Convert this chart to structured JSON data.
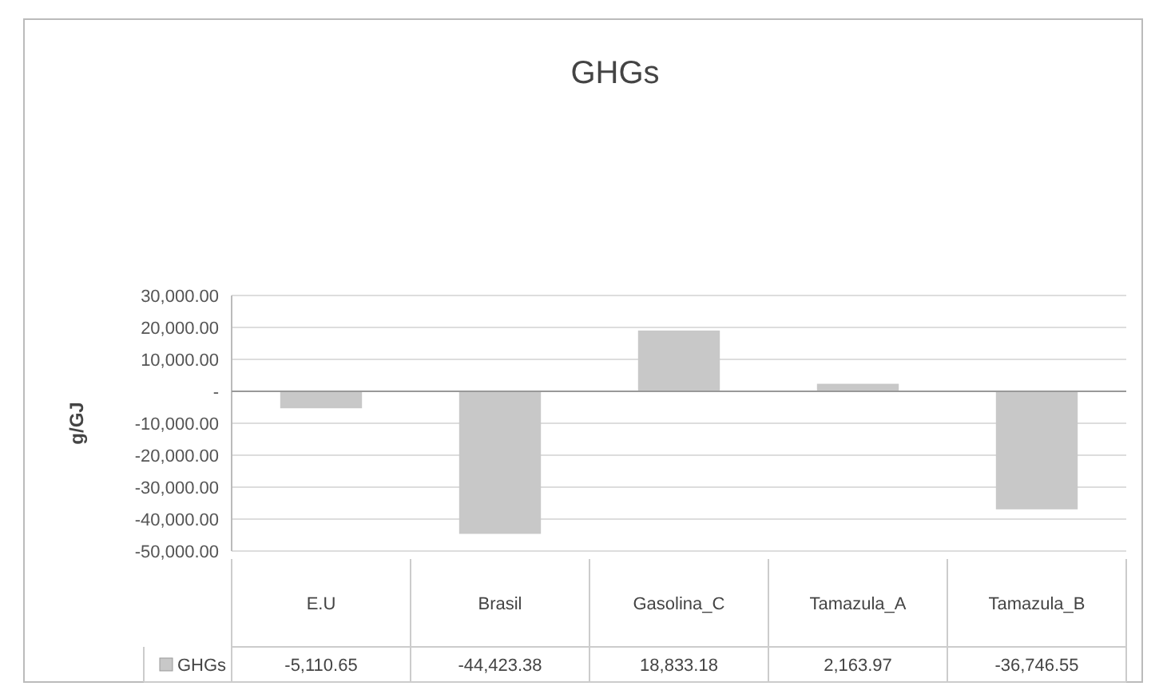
{
  "chart_data": {
    "type": "bar",
    "title": "GHGs",
    "ylabel": "g/GJ",
    "categories": [
      "E.U",
      "Brasil",
      "Gasolina_C",
      "Tamazula_A",
      "Tamazula_B"
    ],
    "series": [
      {
        "name": "GHGs",
        "color": "#c8c8c8",
        "values": [
          -5110.65,
          -44423.38,
          18833.18,
          2163.97,
          -36746.55
        ],
        "value_labels": [
          "-5,110.65",
          "-44,423.38",
          "18,833.18",
          "2,163.97",
          "-36,746.55"
        ]
      }
    ],
    "ylim": [
      -50000,
      30000
    ],
    "yticks": [
      {
        "value": -50000,
        "label": "-50,000.00"
      },
      {
        "value": -40000,
        "label": "-40,000.00"
      },
      {
        "value": -30000,
        "label": "-30,000.00"
      },
      {
        "value": -20000,
        "label": "-20,000.00"
      },
      {
        "value": -10000,
        "label": "-10,000.00"
      },
      {
        "value": 0,
        "label": "-"
      },
      {
        "value": 10000,
        "label": "10,000.00"
      },
      {
        "value": 20000,
        "label": "20,000.00"
      },
      {
        "value": 30000,
        "label": "30,000.00"
      }
    ],
    "grid": "y",
    "legend": "bottom"
  }
}
